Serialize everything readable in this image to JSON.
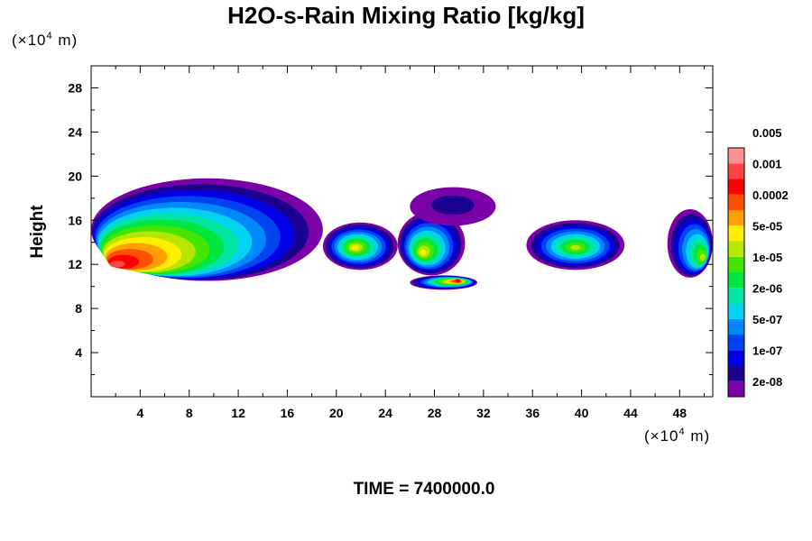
{
  "chart_data": {
    "type": "heatmap",
    "title": "H2O-s-Rain Mixing Ratio [kg/kg]",
    "ylabel": "Height",
    "xlabel": "",
    "x_unit_prefix": "(×10",
    "x_unit_exp": "4",
    "x_unit_suffix": " m)",
    "y_unit_prefix": "(×10",
    "y_unit_exp": "4",
    "y_unit_suffix": " m)",
    "xlim": [
      0,
      50.7
    ],
    "ylim": [
      0,
      30
    ],
    "x_ticks": [
      4,
      8,
      12,
      16,
      20,
      24,
      28,
      32,
      36,
      40,
      44,
      48
    ],
    "y_ticks": [
      4,
      8,
      12,
      16,
      20,
      24,
      28
    ],
    "colorbar": {
      "colors": [
        "#7a00a8",
        "#1a0090",
        "#0000e6",
        "#0044f0",
        "#0088ff",
        "#00d2f0",
        "#00e6a0",
        "#00e640",
        "#44e600",
        "#b4e600",
        "#ffee00",
        "#ffa000",
        "#ff5000",
        "#ff0000",
        "#ff4444",
        "#ff9090"
      ],
      "labels": [
        "2e-08",
        "1e-07",
        "5e-07",
        "2e-06",
        "1e-05",
        "5e-05",
        "0.0002",
        "0.001",
        "0.005"
      ]
    },
    "field_regions": [
      {
        "x": [
          0.0,
          18.9
        ],
        "y": [
          10.5,
          19.8
        ],
        "peak_level": 14,
        "peak_x": 1.6,
        "peak_y": 11.8
      },
      {
        "x": [
          18.9,
          25.0
        ],
        "y": [
          11.5,
          15.8
        ],
        "peak_level": 10,
        "peak_x": 21.5,
        "peak_y": 13.5
      },
      {
        "x": [
          25.0,
          30.5
        ],
        "y": [
          11.0,
          16.8
        ],
        "peak_level": 10,
        "peak_x": 27.0,
        "peak_y": 13.0
      },
      {
        "x": [
          26.0,
          33.0
        ],
        "y": [
          15.5,
          19.0
        ],
        "peak_level": 1,
        "peak_x": 29.5,
        "peak_y": 17.5
      },
      {
        "x": [
          35.5,
          43.5
        ],
        "y": [
          11.5,
          16.0
        ],
        "peak_level": 9,
        "peak_x": 39.5,
        "peak_y": 13.5
      },
      {
        "x": [
          47.0,
          50.7
        ],
        "y": [
          10.8,
          17.0
        ],
        "peak_level": 9,
        "peak_x": 50.0,
        "peak_y": 12.5
      },
      {
        "x": [
          26.0,
          31.5
        ],
        "y": [
          9.7,
          11.0
        ],
        "peak_level": 13,
        "peak_x": 30.0,
        "peak_y": 10.5
      }
    ],
    "caption": "TIME = 7400000.0"
  }
}
